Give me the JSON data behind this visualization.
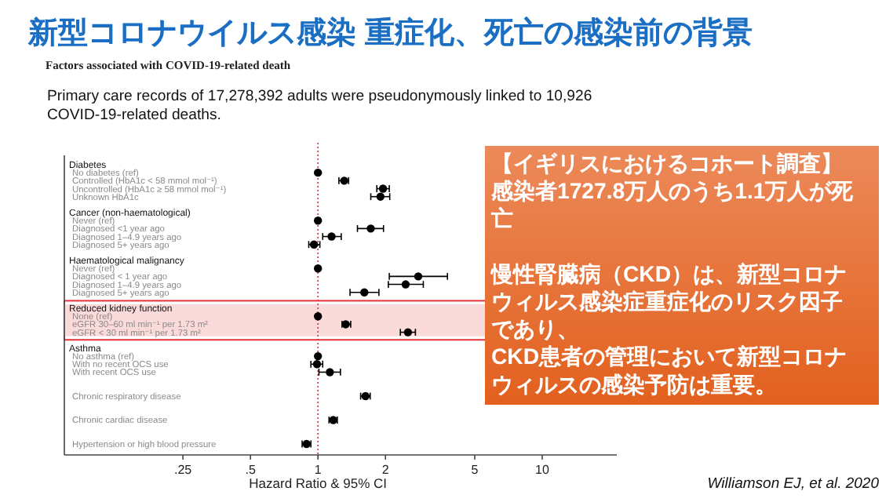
{
  "chart_data": {
    "type": "scatter",
    "orientation": "horizontal",
    "log": "x",
    "marker": "circle",
    "title": "新型コロナウイルス感染 重症化、死亡の感染前の背景",
    "subtitle": "Factors associated with COVID-19-related death",
    "xlabel": "Hazard Ratio & 95% CI",
    "annotations": [
      "Primary care records of 17,278,392 adults were pseudonymously linked to 10,926\nCOVID-19-related deaths.",
      "【イギリスにおけるコホート調査】",
      "感染者1727.8万人のうち1.1万人が死亡",
      "慢性腎臓病（CKD）は、新型コロナウィルス感染症重症化のリスク因子であり、",
      "CKD患者の管理において新型コロナウィルスの感染予防は重要。",
      "Williamson EJ, et al. 2020"
    ],
    "categories": [
      "Diabetes",
      "No diabetes (ref)",
      "Controlled (HbA1c < 58 mmol mol⁻¹)",
      "Uncontrolled (HbA1c ≥ 58 mmol mol⁻¹)",
      "Unknown HbA1c",
      null,
      "Cancer (non-haematological)",
      "Never (ref)",
      "Diagnosed <1 year ago",
      "Diagnosed 1–4.9 years ago",
      "Diagnosed 5+ years ago",
      null,
      "Haematological malignancy",
      "Never (ref)",
      "Diagnosed < 1 year ago",
      "Diagnosed 1–4.9 years ago",
      "Diagnosed 5+ years ago",
      null,
      "Reduced kidney function",
      "None (ref)",
      "eGFR 30–60 ml min⁻¹ per 1.73 m²",
      "eGFR < 30 ml min⁻¹ per 1.73 m²",
      null,
      "Asthma",
      "No asthma (ref)",
      "With no recent OCS use",
      "With recent OCS use",
      null,
      null,
      "Chronic respiratory disease",
      null,
      null,
      "Chronic cardiac disease",
      null,
      null,
      "Hypertension or high blood pressure"
    ],
    "series": [
      {
        "color": "#000000",
        "values": [
          null,
          1,
          1.31,
          1.95,
          1.9,
          null,
          null,
          1,
          1.72,
          1.15,
          0.96,
          null,
          null,
          1,
          2.8,
          2.46,
          1.61,
          null,
          null,
          1,
          1.33,
          2.52,
          null,
          null,
          1,
          0.99,
          1.13,
          null,
          null,
          1.63,
          null,
          null,
          1.17,
          null,
          null,
          0.89
        ],
        "errors": [
          null,
          null,
          [
            1.24,
            1.37
          ],
          [
            1.83,
            2.08
          ],
          [
            1.72,
            2.09
          ],
          null,
          null,
          null,
          [
            1.5,
            1.96
          ],
          [
            1.05,
            1.27
          ],
          [
            0.91,
            1.02
          ],
          null,
          null,
          null,
          [
            2.08,
            3.78
          ],
          [
            2.06,
            2.95
          ],
          [
            1.39,
            1.87
          ],
          null,
          null,
          null,
          [
            1.28,
            1.4
          ],
          [
            2.33,
            2.72
          ],
          null,
          null,
          null,
          [
            0.93,
            1.05
          ],
          [
            1.01,
            1.26
          ],
          null,
          null,
          [
            1.55,
            1.71
          ],
          null,
          null,
          [
            1.12,
            1.22
          ],
          null,
          null,
          [
            0.85,
            0.93
          ]
        ]
      }
    ],
    "xlim": [
      0.074,
      21.5
    ],
    "xticks": [
      {
        "value": 0.25,
        "label": ".25"
      },
      {
        "value": 0.5,
        "label": ".5"
      },
      1,
      2,
      5,
      10
    ],
    "ref_lines": [
      {
        "axis": "x",
        "value": 1,
        "color": "#e03030",
        "line_style": "dotted"
      }
    ],
    "bands": [
      {
        "axis": "y",
        "from": "Reduced kidney function",
        "to": "eGFR < 30 ml min⁻¹ per 1.73 m²",
        "color": "#fbdada"
      }
    ]
  }
}
